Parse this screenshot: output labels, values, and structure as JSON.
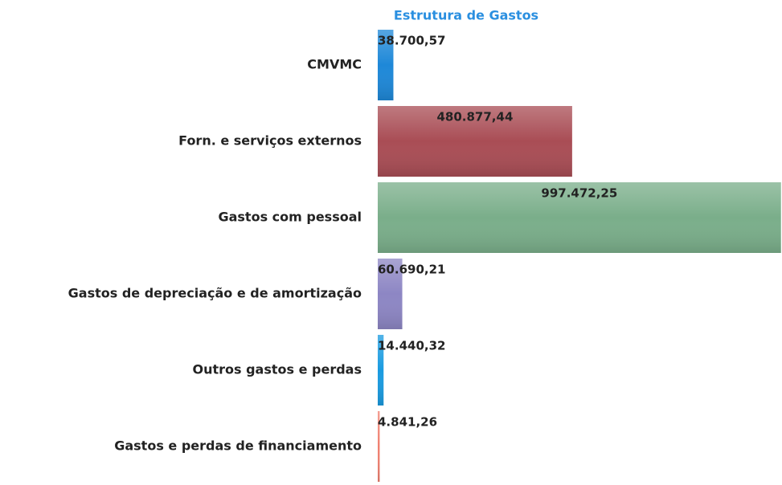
{
  "chart_data": {
    "type": "hbar",
    "title": "Estrutura de Gastos",
    "categories": [
      "CMVMC",
      "Forn. e serviços externos",
      "Gastos com pessoal",
      "Gastos de depreciação e de amortização",
      "Outros gastos e perdas",
      "Gastos e perdas de financiamento"
    ],
    "values": [
      38700.57,
      480877.44,
      997472.25,
      60690.21,
      14440.32,
      4841.26
    ],
    "value_labels": [
      "38.700,57",
      "480.877,44",
      "997.472,25",
      "60.690,21",
      "14.440,32",
      "4.841,26"
    ],
    "colors": [
      "#1e88d8",
      "#a94d55",
      "#7aae8a",
      "#8d86c4",
      "#1a9be0",
      "#f08070"
    ],
    "xlim": [
      0,
      1000000
    ]
  }
}
